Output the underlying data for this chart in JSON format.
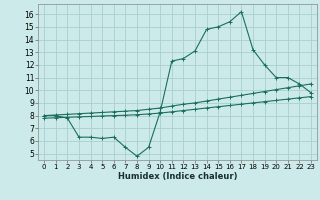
{
  "xlabel": "Humidex (Indice chaleur)",
  "background_color": "#cdeaea",
  "grid_color": "#aacece",
  "line_color": "#1a6e5e",
  "xlim": [
    -0.5,
    23.5
  ],
  "ylim": [
    4.5,
    16.8
  ],
  "yticks": [
    5,
    6,
    7,
    8,
    9,
    10,
    11,
    12,
    13,
    14,
    15,
    16
  ],
  "xticks": [
    0,
    1,
    2,
    3,
    4,
    5,
    6,
    7,
    8,
    9,
    10,
    11,
    12,
    13,
    14,
    15,
    16,
    17,
    18,
    19,
    20,
    21,
    22,
    23
  ],
  "line1_x": [
    0,
    1,
    2,
    3,
    4,
    5,
    6,
    7,
    8,
    9,
    10,
    11,
    12,
    13,
    14,
    15,
    16,
    17,
    18,
    19,
    20,
    21,
    22,
    23
  ],
  "line1_y": [
    8.0,
    8.0,
    7.8,
    6.3,
    6.3,
    6.2,
    6.3,
    5.5,
    4.8,
    5.5,
    8.3,
    12.3,
    12.5,
    13.1,
    14.8,
    15.0,
    15.4,
    16.2,
    13.2,
    12.0,
    11.0,
    11.0,
    10.5,
    9.8
  ],
  "line2_x": [
    0,
    1,
    2,
    3,
    4,
    5,
    6,
    7,
    8,
    9,
    10,
    11,
    12,
    13,
    14,
    15,
    16,
    17,
    18,
    19,
    20,
    21,
    22,
    23
  ],
  "line2_y": [
    8.0,
    8.05,
    8.1,
    8.15,
    8.2,
    8.25,
    8.3,
    8.35,
    8.4,
    8.5,
    8.6,
    8.75,
    8.9,
    9.0,
    9.15,
    9.3,
    9.45,
    9.6,
    9.75,
    9.9,
    10.05,
    10.2,
    10.35,
    10.5
  ],
  "line3_x": [
    0,
    1,
    2,
    3,
    4,
    5,
    6,
    7,
    8,
    9,
    10,
    11,
    12,
    13,
    14,
    15,
    16,
    17,
    18,
    19,
    20,
    21,
    22,
    23
  ],
  "line3_y": [
    7.8,
    7.83,
    7.87,
    7.9,
    7.93,
    7.97,
    8.0,
    8.03,
    8.07,
    8.13,
    8.2,
    8.3,
    8.4,
    8.5,
    8.6,
    8.7,
    8.8,
    8.9,
    9.0,
    9.1,
    9.2,
    9.3,
    9.4,
    9.5
  ]
}
